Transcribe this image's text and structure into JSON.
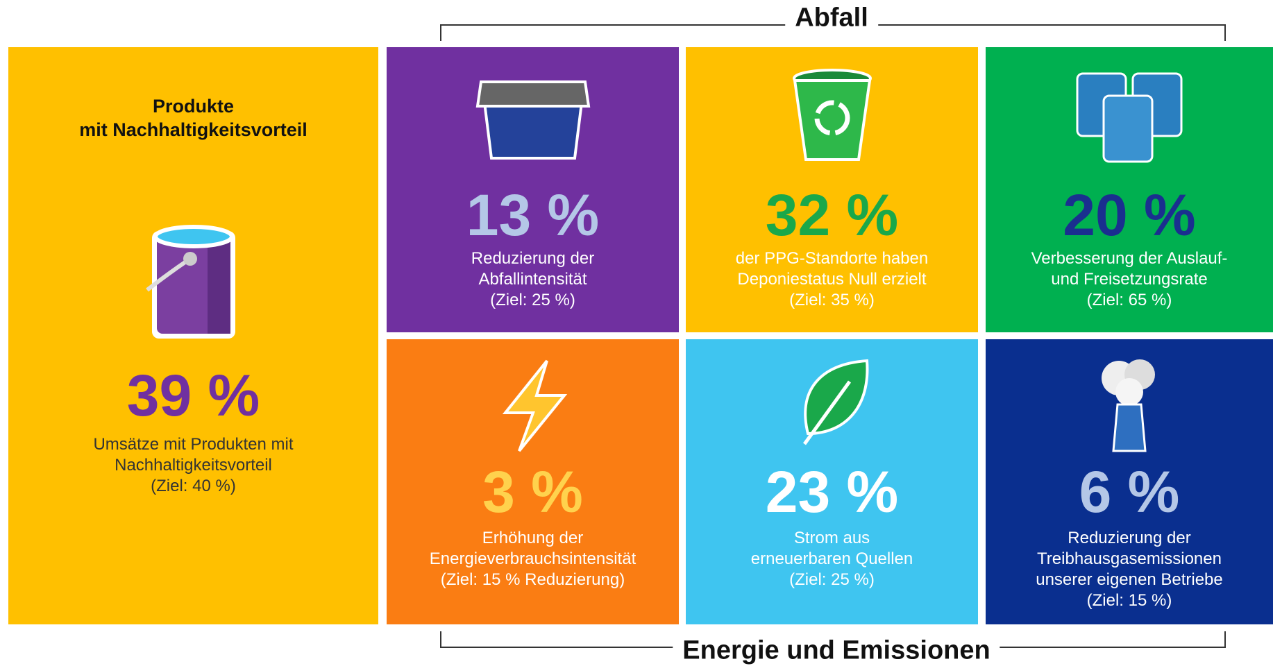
{
  "header_top": "Abfall",
  "header_bottom": "Energie und Emissionen",
  "feature": {
    "title": [
      "Produkte",
      "mit Nachhaltigkeitsvorteil"
    ],
    "value": "39 %",
    "lines": [
      "Umsätze mit Produkten mit",
      "Nachhaltigkeitsvorteil",
      "(Ziel: 40 %)"
    ]
  },
  "tiles": [
    {
      "value": "13 %",
      "lines": [
        "Reduzierung der",
        "Abfallintensität",
        "(Ziel: 25 %)"
      ]
    },
    {
      "value": "32 %",
      "lines": [
        "der PPG-Standorte haben",
        "Deponiestatus Null erzielt",
        "(Ziel: 35 %)"
      ]
    },
    {
      "value": "20 %",
      "lines": [
        "Verbesserung der Auslauf-",
        "und Freisetzungsrate",
        "(Ziel: 65 %)"
      ]
    },
    {
      "value": "3 %",
      "lines": [
        "Erhöhung der",
        "Energieverbrauchsintensität",
        "(Ziel: 15 % Reduzierung)"
      ]
    },
    {
      "value": "23 %",
      "lines": [
        "Strom aus",
        "erneuerbaren Quellen",
        "(Ziel: 25 %)"
      ]
    },
    {
      "value": "6 %",
      "lines": [
        "Reduzierung der",
        "Treibhausgasemissionen",
        "unserer eigenen Betriebe",
        "(Ziel: 15 %)"
      ]
    }
  ]
}
